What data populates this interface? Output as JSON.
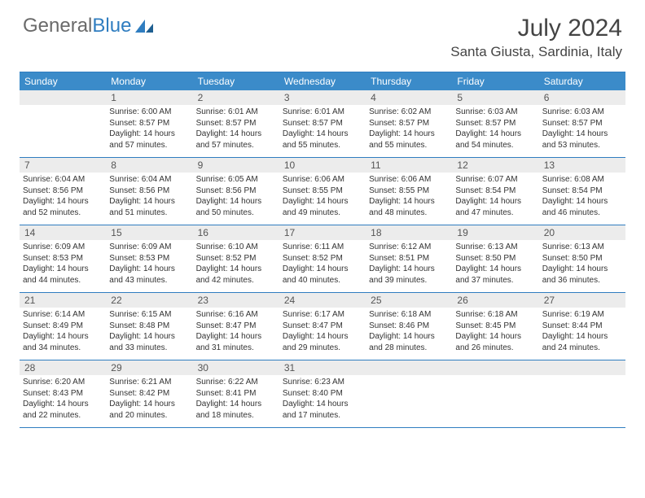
{
  "logo": {
    "text1": "General",
    "text2": "Blue"
  },
  "title": "July 2024",
  "location": "Santa Giusta, Sardinia, Italy",
  "colors": {
    "header_bg": "#3b8bc9",
    "border": "#2f7dc0",
    "daynum_bg": "#ececec",
    "text": "#333333",
    "logo_gray": "#6a6a6a"
  },
  "dow": [
    "Sunday",
    "Monday",
    "Tuesday",
    "Wednesday",
    "Thursday",
    "Friday",
    "Saturday"
  ],
  "weeks": [
    [
      {
        "n": "",
        "sr": "",
        "ss": "",
        "dl": ""
      },
      {
        "n": "1",
        "sr": "Sunrise: 6:00 AM",
        "ss": "Sunset: 8:57 PM",
        "dl": "Daylight: 14 hours and 57 minutes."
      },
      {
        "n": "2",
        "sr": "Sunrise: 6:01 AM",
        "ss": "Sunset: 8:57 PM",
        "dl": "Daylight: 14 hours and 57 minutes."
      },
      {
        "n": "3",
        "sr": "Sunrise: 6:01 AM",
        "ss": "Sunset: 8:57 PM",
        "dl": "Daylight: 14 hours and 55 minutes."
      },
      {
        "n": "4",
        "sr": "Sunrise: 6:02 AM",
        "ss": "Sunset: 8:57 PM",
        "dl": "Daylight: 14 hours and 55 minutes."
      },
      {
        "n": "5",
        "sr": "Sunrise: 6:03 AM",
        "ss": "Sunset: 8:57 PM",
        "dl": "Daylight: 14 hours and 54 minutes."
      },
      {
        "n": "6",
        "sr": "Sunrise: 6:03 AM",
        "ss": "Sunset: 8:57 PM",
        "dl": "Daylight: 14 hours and 53 minutes."
      }
    ],
    [
      {
        "n": "7",
        "sr": "Sunrise: 6:04 AM",
        "ss": "Sunset: 8:56 PM",
        "dl": "Daylight: 14 hours and 52 minutes."
      },
      {
        "n": "8",
        "sr": "Sunrise: 6:04 AM",
        "ss": "Sunset: 8:56 PM",
        "dl": "Daylight: 14 hours and 51 minutes."
      },
      {
        "n": "9",
        "sr": "Sunrise: 6:05 AM",
        "ss": "Sunset: 8:56 PM",
        "dl": "Daylight: 14 hours and 50 minutes."
      },
      {
        "n": "10",
        "sr": "Sunrise: 6:06 AM",
        "ss": "Sunset: 8:55 PM",
        "dl": "Daylight: 14 hours and 49 minutes."
      },
      {
        "n": "11",
        "sr": "Sunrise: 6:06 AM",
        "ss": "Sunset: 8:55 PM",
        "dl": "Daylight: 14 hours and 48 minutes."
      },
      {
        "n": "12",
        "sr": "Sunrise: 6:07 AM",
        "ss": "Sunset: 8:54 PM",
        "dl": "Daylight: 14 hours and 47 minutes."
      },
      {
        "n": "13",
        "sr": "Sunrise: 6:08 AM",
        "ss": "Sunset: 8:54 PM",
        "dl": "Daylight: 14 hours and 46 minutes."
      }
    ],
    [
      {
        "n": "14",
        "sr": "Sunrise: 6:09 AM",
        "ss": "Sunset: 8:53 PM",
        "dl": "Daylight: 14 hours and 44 minutes."
      },
      {
        "n": "15",
        "sr": "Sunrise: 6:09 AM",
        "ss": "Sunset: 8:53 PM",
        "dl": "Daylight: 14 hours and 43 minutes."
      },
      {
        "n": "16",
        "sr": "Sunrise: 6:10 AM",
        "ss": "Sunset: 8:52 PM",
        "dl": "Daylight: 14 hours and 42 minutes."
      },
      {
        "n": "17",
        "sr": "Sunrise: 6:11 AM",
        "ss": "Sunset: 8:52 PM",
        "dl": "Daylight: 14 hours and 40 minutes."
      },
      {
        "n": "18",
        "sr": "Sunrise: 6:12 AM",
        "ss": "Sunset: 8:51 PM",
        "dl": "Daylight: 14 hours and 39 minutes."
      },
      {
        "n": "19",
        "sr": "Sunrise: 6:13 AM",
        "ss": "Sunset: 8:50 PM",
        "dl": "Daylight: 14 hours and 37 minutes."
      },
      {
        "n": "20",
        "sr": "Sunrise: 6:13 AM",
        "ss": "Sunset: 8:50 PM",
        "dl": "Daylight: 14 hours and 36 minutes."
      }
    ],
    [
      {
        "n": "21",
        "sr": "Sunrise: 6:14 AM",
        "ss": "Sunset: 8:49 PM",
        "dl": "Daylight: 14 hours and 34 minutes."
      },
      {
        "n": "22",
        "sr": "Sunrise: 6:15 AM",
        "ss": "Sunset: 8:48 PM",
        "dl": "Daylight: 14 hours and 33 minutes."
      },
      {
        "n": "23",
        "sr": "Sunrise: 6:16 AM",
        "ss": "Sunset: 8:47 PM",
        "dl": "Daylight: 14 hours and 31 minutes."
      },
      {
        "n": "24",
        "sr": "Sunrise: 6:17 AM",
        "ss": "Sunset: 8:47 PM",
        "dl": "Daylight: 14 hours and 29 minutes."
      },
      {
        "n": "25",
        "sr": "Sunrise: 6:18 AM",
        "ss": "Sunset: 8:46 PM",
        "dl": "Daylight: 14 hours and 28 minutes."
      },
      {
        "n": "26",
        "sr": "Sunrise: 6:18 AM",
        "ss": "Sunset: 8:45 PM",
        "dl": "Daylight: 14 hours and 26 minutes."
      },
      {
        "n": "27",
        "sr": "Sunrise: 6:19 AM",
        "ss": "Sunset: 8:44 PM",
        "dl": "Daylight: 14 hours and 24 minutes."
      }
    ],
    [
      {
        "n": "28",
        "sr": "Sunrise: 6:20 AM",
        "ss": "Sunset: 8:43 PM",
        "dl": "Daylight: 14 hours and 22 minutes."
      },
      {
        "n": "29",
        "sr": "Sunrise: 6:21 AM",
        "ss": "Sunset: 8:42 PM",
        "dl": "Daylight: 14 hours and 20 minutes."
      },
      {
        "n": "30",
        "sr": "Sunrise: 6:22 AM",
        "ss": "Sunset: 8:41 PM",
        "dl": "Daylight: 14 hours and 18 minutes."
      },
      {
        "n": "31",
        "sr": "Sunrise: 6:23 AM",
        "ss": "Sunset: 8:40 PM",
        "dl": "Daylight: 14 hours and 17 minutes."
      },
      {
        "n": "",
        "sr": "",
        "ss": "",
        "dl": ""
      },
      {
        "n": "",
        "sr": "",
        "ss": "",
        "dl": ""
      },
      {
        "n": "",
        "sr": "",
        "ss": "",
        "dl": ""
      }
    ]
  ]
}
